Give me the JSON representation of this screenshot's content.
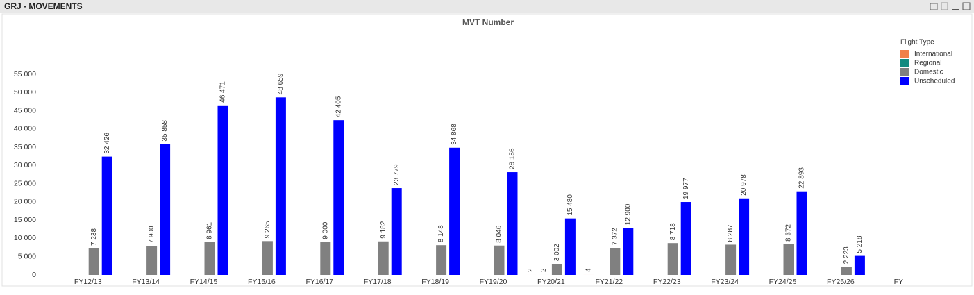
{
  "window_title": "GRJ - MOVEMENTS",
  "chart_data": {
    "type": "bar",
    "title": "MVT Number",
    "x_label": "FY",
    "categories": [
      "FY12/13",
      "FY13/14",
      "FY14/15",
      "FY15/16",
      "FY16/17",
      "FY17/18",
      "FY18/19",
      "FY19/20",
      "FY20/21",
      "FY21/22",
      "FY22/23",
      "FY23/24",
      "FY24/25",
      "FY25/26"
    ],
    "legend_title": "Flight Type",
    "legend_position": "top-right",
    "grid": false,
    "series": [
      {
        "name": "International",
        "color": "#f0804a",
        "values": [
          null,
          null,
          null,
          null,
          null,
          null,
          null,
          null,
          2,
          4,
          null,
          null,
          null,
          null
        ]
      },
      {
        "name": "Regional",
        "color": "#138a80",
        "values": [
          null,
          null,
          null,
          null,
          null,
          null,
          null,
          null,
          2,
          null,
          null,
          null,
          null,
          null
        ]
      },
      {
        "name": "Domestic",
        "color": "#808080",
        "values": [
          7238,
          7900,
          8961,
          9265,
          9000,
          9182,
          8148,
          8046,
          3002,
          7372,
          8718,
          8287,
          8372,
          2223
        ],
        "value_labels": [
          "7 238",
          "7 900",
          "8 961",
          "9 265",
          "9 000",
          "9 182",
          "8 148",
          "8 046",
          "3 002",
          "7 372",
          "8 718",
          "8 287",
          "8 372",
          "2 223"
        ]
      },
      {
        "name": "Unscheduled",
        "color": "#0000ff",
        "values": [
          32426,
          35858,
          46471,
          48659,
          42405,
          23779,
          34868,
          28156,
          15480,
          12900,
          19977,
          20978,
          22893,
          5218
        ],
        "value_labels": [
          "32 426",
          "35 858",
          "46 471",
          "48 659",
          "42 405",
          "23 779",
          "34 868",
          "28 156",
          "15 480",
          "12 900",
          "19 977",
          "20 978",
          "22 893",
          "5 218"
        ]
      }
    ],
    "ylim": [
      0,
      55000
    ],
    "yticks": [
      {
        "value": 0,
        "label": "0"
      },
      {
        "value": 5000,
        "label": "5 000"
      },
      {
        "value": 10000,
        "label": "10 000"
      },
      {
        "value": 15000,
        "label": "15 000"
      },
      {
        "value": 20000,
        "label": "20 000"
      },
      {
        "value": 25000,
        "label": "25 000"
      },
      {
        "value": 30000,
        "label": "30 000"
      },
      {
        "value": 35000,
        "label": "35 000"
      },
      {
        "value": 40000,
        "label": "40 000"
      },
      {
        "value": 45000,
        "label": "45 000"
      },
      {
        "value": 50000,
        "label": "50 000"
      },
      {
        "value": 55000,
        "label": "55 000"
      }
    ]
  }
}
